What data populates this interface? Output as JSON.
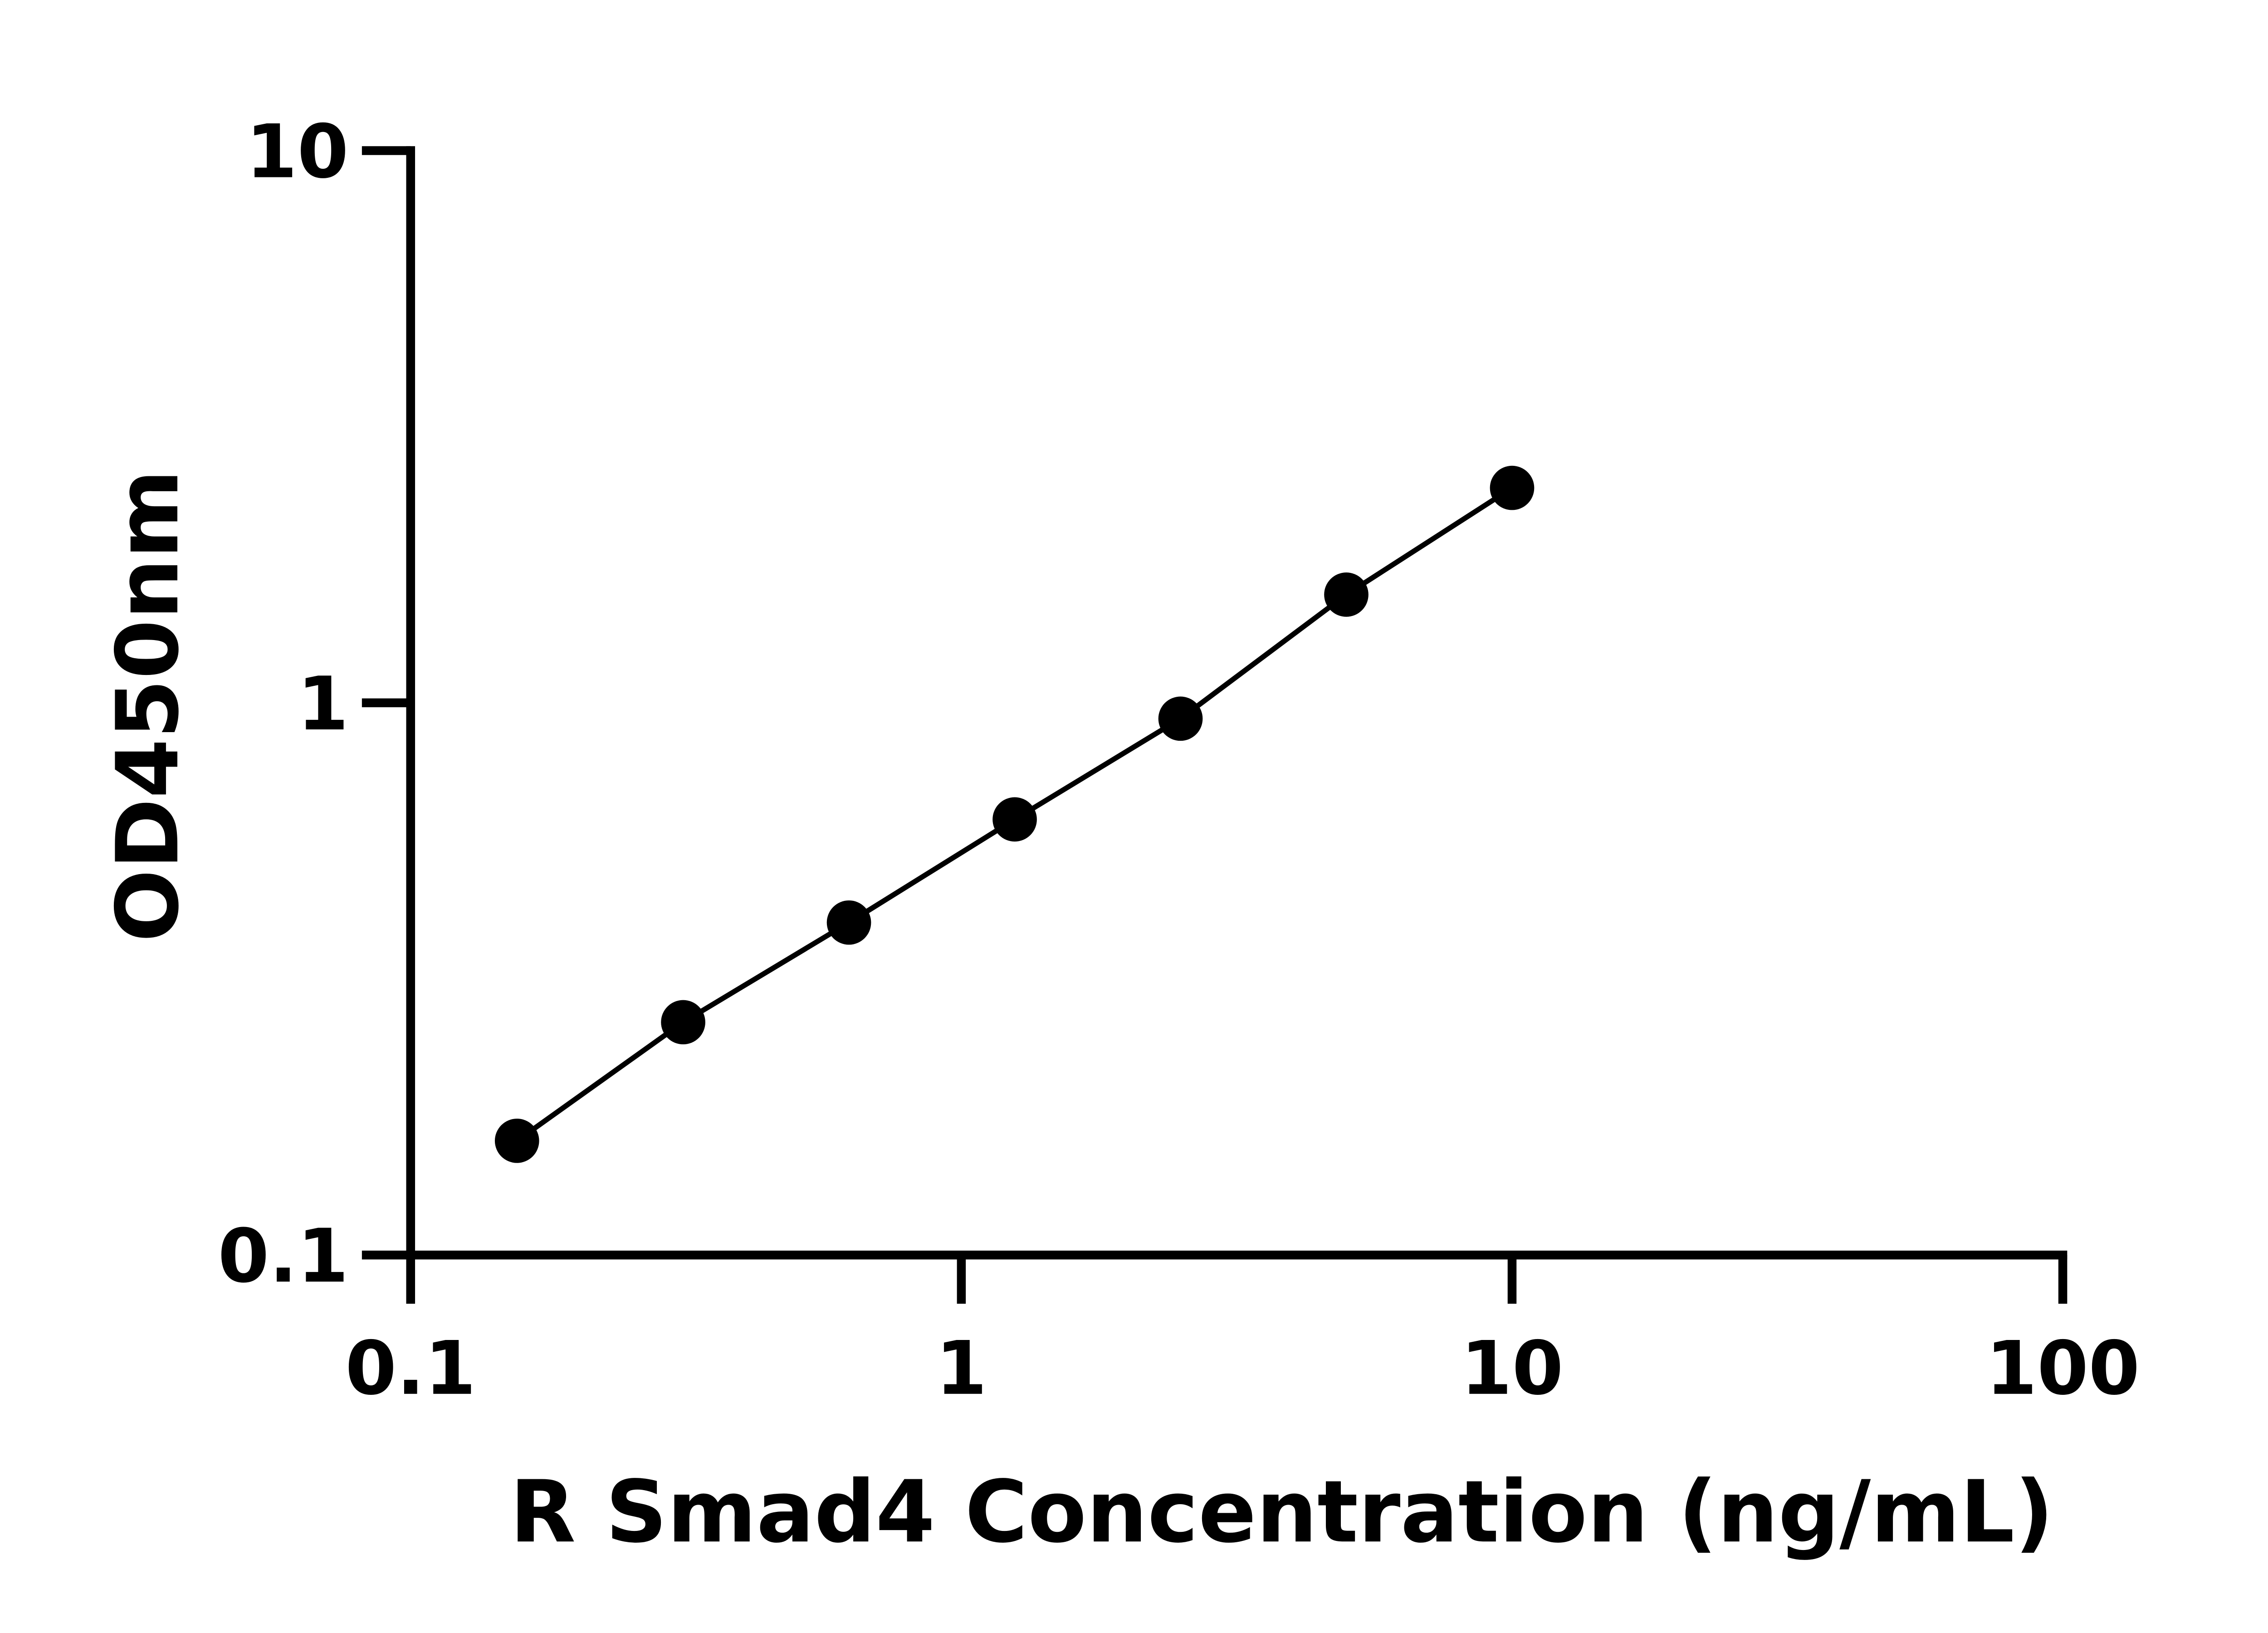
{
  "chart_data": {
    "type": "scatter",
    "title": "",
    "xlabel": "R Smad4 Concentration (ng/mL)",
    "ylabel": "OD450nm",
    "x_scale": "log",
    "y_scale": "log",
    "xlim": [
      0.1,
      100
    ],
    "ylim": [
      0.1,
      10
    ],
    "x_ticks": [
      "0.1",
      "1",
      "10",
      "100"
    ],
    "y_ticks": [
      "0.1",
      "1",
      "10"
    ],
    "grid": false,
    "line_connecting_points": true,
    "marker_color": "#000000",
    "series": [
      {
        "x": [
          0.156,
          0.3125,
          0.625,
          1.25,
          2.5,
          5,
          10
        ],
        "y": [
          0.161,
          0.264,
          0.4,
          0.615,
          0.936,
          1.57,
          2.45
        ]
      }
    ]
  }
}
